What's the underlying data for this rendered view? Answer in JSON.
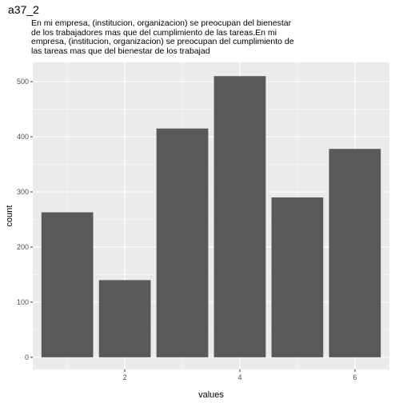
{
  "chart_data": {
    "type": "bar",
    "title": "a37_2",
    "subtitle_lines": [
      "En mi empresa, (institucion, organizacion) se preocupan del bienestar",
      "de los trabajadores mas que del cumplimiento de las tareas.En mi",
      "empresa, (institucion, organizacion) se preocupan del cumplimiento de",
      "las tareas mas que del bienestar de los trabajad"
    ],
    "xlabel": "values",
    "ylabel": "count",
    "x": [
      1,
      2,
      3,
      4,
      5,
      6
    ],
    "values": [
      263,
      140,
      415,
      510,
      290,
      378
    ],
    "xlim": [
      0.4,
      6.6
    ],
    "ylim": [
      -22,
      535
    ],
    "xticks": [
      2,
      4,
      6
    ],
    "yticks": [
      0,
      100,
      200,
      300,
      400,
      500
    ],
    "grid": true,
    "colors": {
      "panel": "#ebebeb",
      "grid": "#ffffff",
      "bar": "#595959"
    }
  }
}
